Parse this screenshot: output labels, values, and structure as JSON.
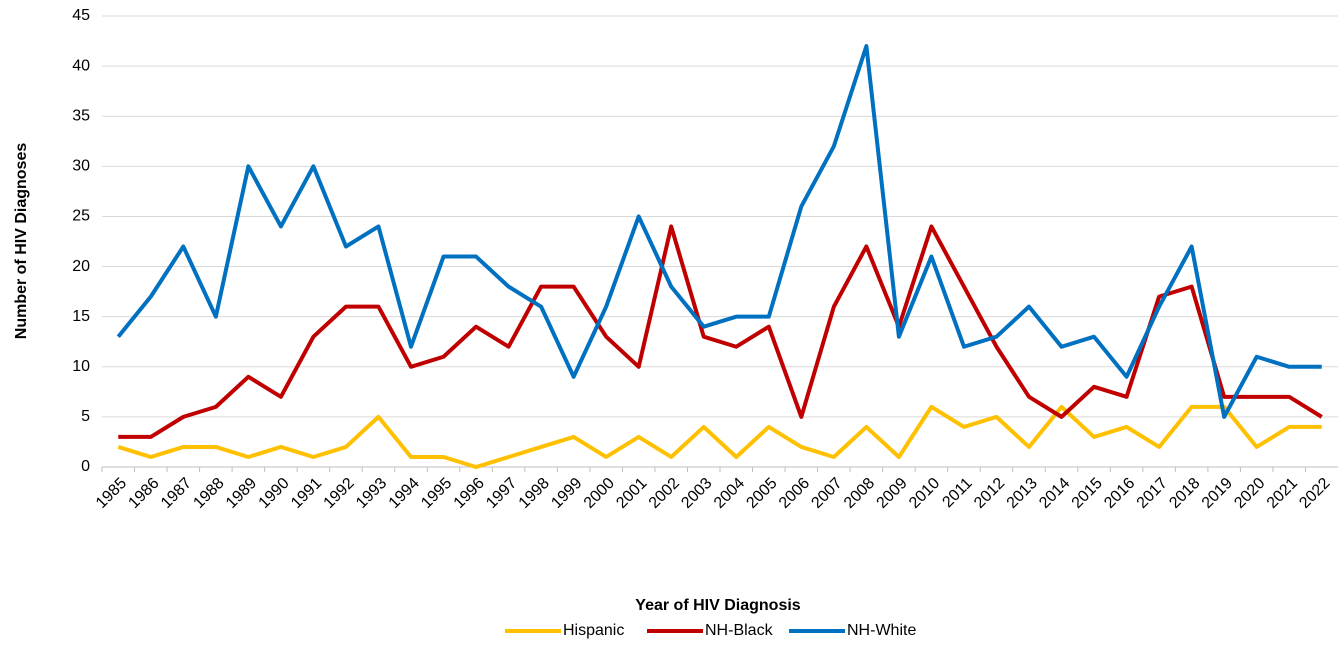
{
  "chart_data": {
    "type": "line",
    "x_label": "Year of HIV Diagnosis",
    "y_label": "Number of HIV Diagnoses",
    "categories": [
      "1985",
      "1986",
      "1987",
      "1988",
      "1989",
      "1990",
      "1991",
      "1992",
      "1993",
      "1994",
      "1995",
      "1996",
      "1997",
      "1998",
      "1999",
      "2000",
      "2001",
      "2002",
      "2003",
      "2004",
      "2005",
      "2006",
      "2007",
      "2008",
      "2009",
      "2010",
      "2011",
      "2012",
      "2013",
      "2014",
      "2015",
      "2016",
      "2017",
      "2018",
      "2019",
      "2020",
      "2021",
      "2022"
    ],
    "series": [
      {
        "name": "Hispanic",
        "color": "#FFC000",
        "values": [
          2,
          1,
          2,
          2,
          1,
          2,
          1,
          2,
          5,
          1,
          1,
          0,
          1,
          2,
          3,
          1,
          3,
          1,
          4,
          1,
          4,
          2,
          1,
          4,
          1,
          6,
          4,
          5,
          2,
          6,
          3,
          4,
          2,
          6,
          6,
          2,
          4,
          4
        ]
      },
      {
        "name": "NH-Black",
        "color": "#C00000",
        "values": [
          3,
          3,
          5,
          6,
          9,
          7,
          13,
          16,
          16,
          10,
          11,
          14,
          12,
          18,
          18,
          13,
          10,
          24,
          13,
          12,
          14,
          5,
          16,
          22,
          14,
          24,
          18,
          12,
          7,
          5,
          8,
          7,
          17,
          18,
          7,
          7,
          7,
          5
        ]
      },
      {
        "name": "NH-White",
        "color": "#0070C0",
        "values": [
          13,
          17,
          22,
          15,
          30,
          24,
          30,
          22,
          24,
          12,
          21,
          21,
          18,
          16,
          9,
          16,
          25,
          18,
          14,
          15,
          15,
          26,
          32,
          42,
          13,
          21,
          12,
          13,
          16,
          12,
          13,
          9,
          16,
          22,
          5,
          11,
          10,
          10
        ]
      }
    ],
    "ylim": [
      0,
      45
    ],
    "yticks": [
      0,
      5,
      10,
      15,
      20,
      25,
      30,
      35,
      40,
      45
    ],
    "grid": true,
    "legend": "bottom"
  }
}
